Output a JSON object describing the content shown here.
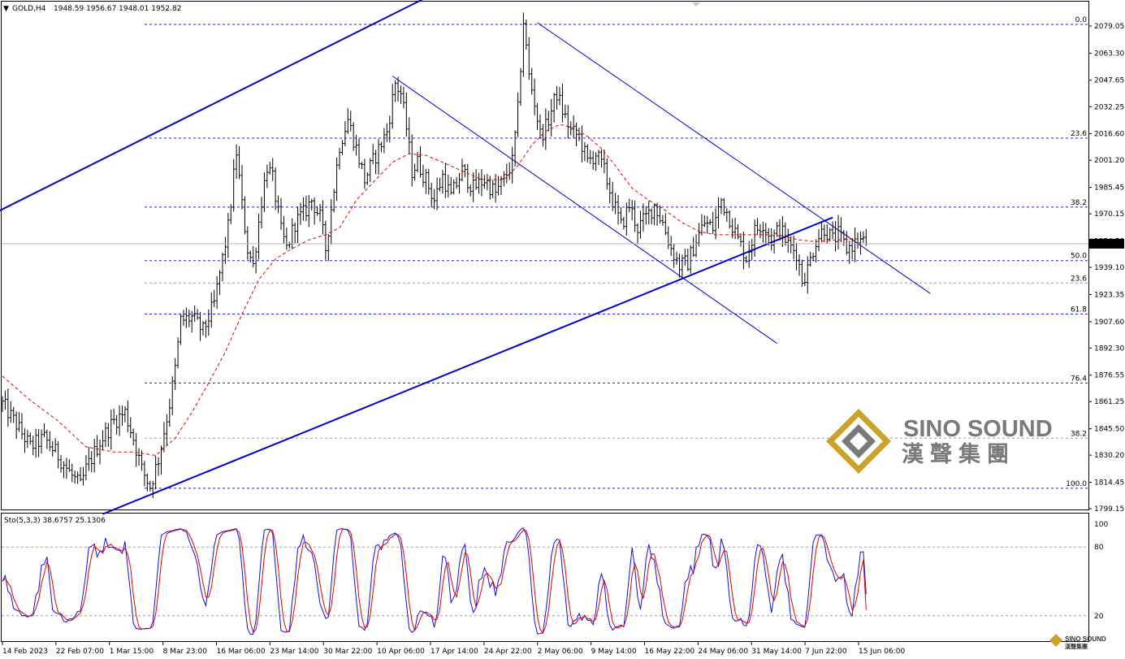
{
  "header": {
    "menu_glyph": "▼",
    "symbol": "GOLD,H4",
    "ohlc": "1948.59 1956.67 1948.01 1952.82"
  },
  "oscillator_header": "Sto(5,3,3) 38.6757 25.1306",
  "brand": {
    "name": "SINO SOUND",
    "cn": "漢聲集團",
    "small_name": "SINO SOUND",
    "small_cn": "漢聲集團"
  },
  "colors": {
    "candles": "#000000",
    "ma": "#e00000",
    "trendline": "#0000cc",
    "fib_blue": "#2222cc",
    "fib_gray": "#9a9a9a",
    "stoch_main": "#1010e0",
    "stoch_signal": "#e00000",
    "price_tag_bg": "#000000",
    "brand_gold": "#c9a227",
    "brand_gray": "#7a7a7a"
  },
  "chart_data": {
    "type": "candlestick",
    "symbol": "GOLD",
    "timeframe": "H4",
    "last_price": 1952.82,
    "ylim": [
      1799.15,
      2090
    ],
    "price_ticks": [
      "2079.05",
      "2063.30",
      "2047.65",
      "2032.25",
      "2016.60",
      "2001.20",
      "1985.45",
      "1970.15",
      "1954.50",
      "1939.10",
      "1923.35",
      "1907.60",
      "1892.30",
      "1876.55",
      "1861.25",
      "1845.50",
      "1830.20",
      "1814.45",
      "1799.15"
    ],
    "x_labels": [
      "14 Feb 2023",
      "22 Feb 07:00",
      "1 Mar 15:00",
      "8 Mar 23:00",
      "16 Mar 06:00",
      "23 Mar 14:00",
      "30 Mar 22:00",
      "10 Apr 06:00",
      "17 Apr 14:00",
      "24 Apr 22:00",
      "2 May 06:00",
      "9 May 14:00",
      "16 May 22:00",
      "24 May 06:00",
      "31 May 14:00",
      "7 Jun 22:00",
      "15 Jun 06:00"
    ],
    "close_path": [
      [
        0,
        1860
      ],
      [
        5,
        1848
      ],
      [
        10,
        1835
      ],
      [
        15,
        1840
      ],
      [
        20,
        1830
      ],
      [
        25,
        1818
      ],
      [
        28,
        1812
      ],
      [
        30,
        1822
      ],
      [
        35,
        1838
      ],
      [
        40,
        1850
      ],
      [
        44,
        1855
      ],
      [
        47,
        1840
      ],
      [
        50,
        1822
      ],
      [
        53,
        1812
      ],
      [
        56,
        1828
      ],
      [
        60,
        1860
      ],
      [
        62,
        1880
      ],
      [
        64,
        1908
      ],
      [
        68,
        1910
      ],
      [
        72,
        1902
      ],
      [
        76,
        1918
      ],
      [
        79,
        1944
      ],
      [
        81,
        1962
      ],
      [
        83,
        1992
      ],
      [
        84,
        2006
      ],
      [
        86,
        1975
      ],
      [
        88,
        1950
      ],
      [
        90,
        1940
      ],
      [
        93,
        1978
      ],
      [
        95,
        1998
      ],
      [
        97,
        1990
      ],
      [
        100,
        1960
      ],
      [
        102,
        1950
      ],
      [
        105,
        1965
      ],
      [
        108,
        1970
      ],
      [
        111,
        1978
      ],
      [
        114,
        1968
      ],
      [
        116,
        1950
      ],
      [
        119,
        1985
      ],
      [
        121,
        2010
      ],
      [
        124,
        2025
      ],
      [
        127,
        2008
      ],
      [
        130,
        1990
      ],
      [
        134,
        2004
      ],
      [
        138,
        2018
      ],
      [
        141,
        2046
      ],
      [
        143,
        2040
      ],
      [
        145,
        2020
      ],
      [
        147,
        1995
      ],
      [
        149,
        2000
      ],
      [
        152,
        1990
      ],
      [
        155,
        1978
      ],
      [
        158,
        1992
      ],
      [
        161,
        1980
      ],
      [
        165,
        1995
      ],
      [
        169,
        1985
      ],
      [
        173,
        1990
      ],
      [
        177,
        1982
      ],
      [
        180,
        1990
      ],
      [
        183,
        2000
      ],
      [
        185,
        2030
      ],
      [
        187,
        2082
      ],
      [
        189,
        2050
      ],
      [
        191,
        2035
      ],
      [
        193,
        2016
      ],
      [
        195,
        2020
      ],
      [
        199,
        2040
      ],
      [
        201,
        2030
      ],
      [
        204,
        2018
      ],
      [
        207,
        2015
      ],
      [
        210,
        2000
      ],
      [
        213,
        2005
      ],
      [
        216,
        1995
      ],
      [
        219,
        1978
      ],
      [
        222,
        1963
      ],
      [
        225,
        1975
      ],
      [
        228,
        1962
      ],
      [
        231,
        1968
      ],
      [
        234,
        1975
      ],
      [
        237,
        1965
      ],
      [
        240,
        1950
      ],
      [
        243,
        1940
      ],
      [
        246,
        1942
      ],
      [
        249,
        1955
      ],
      [
        252,
        1965
      ],
      [
        255,
        1962
      ],
      [
        258,
        1978
      ],
      [
        261,
        1968
      ],
      [
        264,
        1955
      ],
      [
        267,
        1945
      ],
      [
        270,
        1960
      ],
      [
        273,
        1965
      ],
      [
        276,
        1955
      ],
      [
        279,
        1962
      ],
      [
        282,
        1952
      ],
      [
        285,
        1948
      ],
      [
        287,
        1932
      ],
      [
        289,
        1938
      ],
      [
        292,
        1955
      ],
      [
        295,
        1962
      ],
      [
        298,
        1955
      ],
      [
        300,
        1958
      ],
      [
        303,
        1950
      ],
      [
        305,
        1952
      ],
      [
        307,
        1955
      ],
      [
        310,
        1952.82
      ]
    ],
    "ma_path": [
      [
        0,
        1876
      ],
      [
        10,
        1862
      ],
      [
        20,
        1850
      ],
      [
        30,
        1835
      ],
      [
        40,
        1832
      ],
      [
        47,
        1832
      ],
      [
        55,
        1830
      ],
      [
        62,
        1840
      ],
      [
        68,
        1855
      ],
      [
        74,
        1872
      ],
      [
        80,
        1890
      ],
      [
        86,
        1912
      ],
      [
        92,
        1932
      ],
      [
        98,
        1944
      ],
      [
        104,
        1950
      ],
      [
        110,
        1955
      ],
      [
        116,
        1958
      ],
      [
        121,
        1962
      ],
      [
        127,
        1978
      ],
      [
        134,
        1990
      ],
      [
        140,
        2000
      ],
      [
        146,
        2005
      ],
      [
        152,
        2004
      ],
      [
        158,
        2000
      ],
      [
        165,
        1995
      ],
      [
        172,
        1990
      ],
      [
        180,
        1990
      ],
      [
        185,
        1998
      ],
      [
        190,
        2010
      ],
      [
        195,
        2018
      ],
      [
        200,
        2022
      ],
      [
        205,
        2020
      ],
      [
        210,
        2015
      ],
      [
        215,
        2008
      ],
      [
        220,
        1998
      ],
      [
        226,
        1985
      ],
      [
        232,
        1978
      ],
      [
        238,
        1972
      ],
      [
        244,
        1965
      ],
      [
        250,
        1960
      ],
      [
        256,
        1958
      ],
      [
        262,
        1958
      ],
      [
        268,
        1958
      ],
      [
        274,
        1958
      ],
      [
        280,
        1957
      ],
      [
        286,
        1955
      ],
      [
        292,
        1954
      ],
      [
        300,
        1955
      ],
      [
        310,
        1956
      ]
    ],
    "fibonacci": [
      {
        "label": "0.0",
        "price": 2080,
        "style": "blue"
      },
      {
        "label": "23.6",
        "price": 2014,
        "style": "blue"
      },
      {
        "label": "38.2",
        "price": 1974,
        "style": "blue"
      },
      {
        "label": "50.0",
        "price": 1943,
        "style": "blue"
      },
      {
        "label": "23.6",
        "price": 1930,
        "style": "gray"
      },
      {
        "label": "61.8",
        "price": 1912,
        "style": "blue"
      },
      {
        "label": "76.4",
        "price": 1872,
        "style": "blue"
      },
      {
        "label": "38.2",
        "price": 1840,
        "style": "gray"
      },
      {
        "label": "100.0",
        "price": 1811,
        "style": "blue"
      }
    ],
    "trendlines": [
      {
        "from": [
          -1,
          1972
        ],
        "to": [
          170,
          2110
        ],
        "width": 2
      },
      {
        "from": [
          36,
          1796
        ],
        "to": [
          298,
          1968
        ],
        "width": 2
      },
      {
        "from": [
          140,
          2050
        ],
        "to": [
          278,
          1895
        ],
        "width": 1
      },
      {
        "from": [
          192,
          2081
        ],
        "to": [
          333,
          1924
        ],
        "width": 1
      }
    ],
    "stochastic": {
      "params": "5,3,3",
      "main": 38.6757,
      "signal": 25.1306,
      "ylim": [
        0,
        105
      ],
      "levels": [
        80,
        20
      ],
      "ticks": [
        "100",
        "80",
        "20"
      ]
    }
  }
}
